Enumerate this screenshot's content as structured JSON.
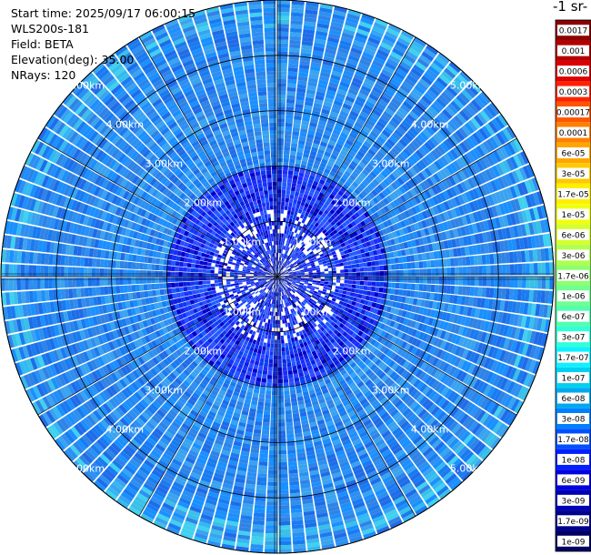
{
  "header": {
    "start_time": "Start time: 2025/09/17 06:00:15",
    "instrument": "WLS200s-181",
    "field": "Field: BETA",
    "elevation": "Elevation(deg): 35.00",
    "nrays": "NRays: 120"
  },
  "colorbar": {
    "unit_label": "-1 sr-",
    "labels": [
      "0.0017",
      "0.001",
      "0.0006",
      "0.0003",
      "0.00017",
      "0.0001",
      "6e-05",
      "3e-05",
      "1.7e-05",
      "1e-05",
      "6e-06",
      "3e-06",
      "1.7e-06",
      "1e-06",
      "6e-07",
      "3e-07",
      "1.7e-07",
      "1e-07",
      "6e-08",
      "3e-08",
      "1.7e-08",
      "1e-08",
      "6e-09",
      "3e-09",
      "1.7e-09",
      "1e-09"
    ],
    "colors": [
      "#8b0000",
      "#b40000",
      "#dc0000",
      "#ff2200",
      "#ff5500",
      "#ff8000",
      "#ffa500",
      "#ffc800",
      "#ffee00",
      "#f0ff10",
      "#d4ff30",
      "#b0ff50",
      "#8cff70",
      "#70ff90",
      "#50ffb0",
      "#30ffd8",
      "#10f0ff",
      "#00d0f0",
      "#00a8f0",
      "#0080ff",
      "#0050ff",
      "#0020ff",
      "#0000e0",
      "#0000b4",
      "#00008c",
      "#000064"
    ]
  },
  "chart_data": {
    "type": "heatmap",
    "title": "",
    "projection": "polar-ppi",
    "nrays": 120,
    "elevation_deg": 35.0,
    "range_rings_km": [
      1.0,
      2.0,
      3.0,
      4.0,
      5.0
    ],
    "ring_labels": [
      "1.00km",
      "2.00km",
      "3.00km",
      "4.00km",
      "5.00km"
    ],
    "max_range_km": 5.0,
    "color_scale": "log",
    "value_range": [
      1e-09,
      0.0017
    ],
    "grid": true,
    "dominant_values": {
      "near_range_0_to_2km": 1e-08,
      "far_range_2_to_5km": 6e-08,
      "edge_patches": 1.7e-07
    }
  }
}
